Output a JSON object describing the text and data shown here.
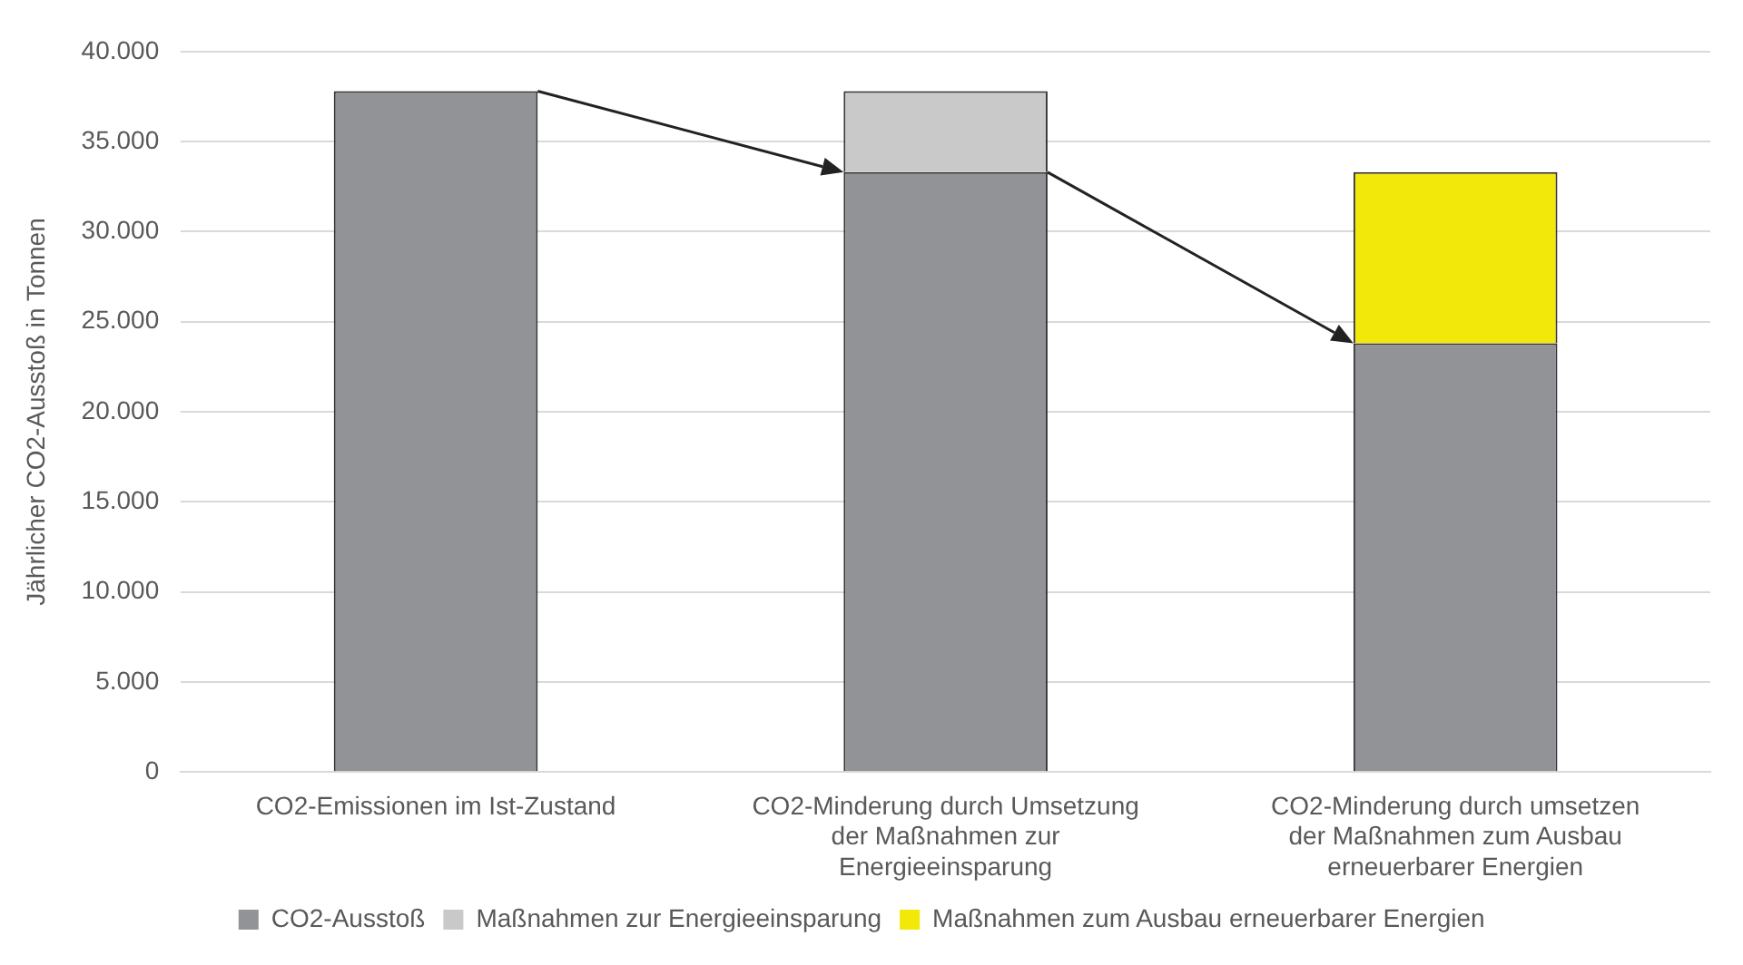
{
  "chart_data": {
    "type": "bar",
    "ylabel": "Jährlicher CO2-Ausstoß in Tonnen",
    "categories": [
      "CO2-Emissionen im Ist-Zustand",
      "CO2-Minderung durch Umsetzung der Maßnahmen zur Energieeinsparung",
      "CO2-Minderung durch umsetzen der Maßnahmen zum Ausbau erneuerbarer Energien"
    ],
    "stacked": true,
    "series": [
      {
        "name": "CO2-Ausstoß",
        "color": "#929397",
        "values": [
          37800,
          33300,
          23800
        ]
      },
      {
        "name": "Maßnahmen zur Energieeinsparung",
        "color": "#c9c9c9",
        "values": [
          null,
          4500,
          null
        ]
      },
      {
        "name": "Maßnahmen zum Ausbau erneuerbarer Energien",
        "color": "#f2e80a",
        "values": [
          null,
          null,
          9500
        ]
      }
    ],
    "ylim": [
      0,
      40000
    ],
    "yticks": [
      {
        "value": 0,
        "label": "0"
      },
      {
        "value": 5000,
        "label": "5.000"
      },
      {
        "value": 10000,
        "label": "10.000"
      },
      {
        "value": 15000,
        "label": "15.000"
      },
      {
        "value": 20000,
        "label": "20.000"
      },
      {
        "value": 25000,
        "label": "25.000"
      },
      {
        "value": 30000,
        "label": "30.000"
      },
      {
        "value": 35000,
        "label": "35.000"
      },
      {
        "value": 40000,
        "label": "40.000"
      }
    ],
    "grid": "y",
    "legend": "bottom"
  }
}
